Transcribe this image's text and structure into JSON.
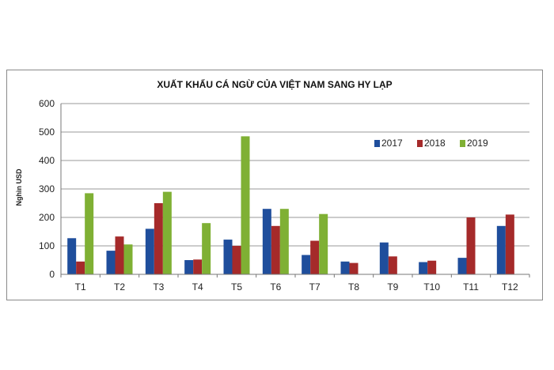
{
  "chart_data": {
    "type": "bar",
    "title": "XUẤT KHẨU CÁ NGỪ CỦA VIỆT NAM SANG HY LẠP",
    "ylabel": "Nghìn USD",
    "xlabel": "",
    "ylim": [
      0,
      600
    ],
    "yticks": [
      "0",
      "100",
      "200",
      "300",
      "400",
      "500",
      "600"
    ],
    "categories": [
      "T1",
      "T2",
      "T3",
      "T4",
      "T5",
      "T6",
      "T7",
      "T8",
      "T9",
      "T10",
      "T11",
      "T12"
    ],
    "series": [
      {
        "name": "2017",
        "color": "#1f4e9c",
        "values": [
          127,
          83,
          160,
          50,
          122,
          230,
          68,
          45,
          112,
          43,
          58,
          170
        ]
      },
      {
        "name": "2018",
        "color": "#a52a2a",
        "values": [
          45,
          133,
          250,
          52,
          100,
          170,
          118,
          40,
          63,
          48,
          200,
          210
        ]
      },
      {
        "name": "2019",
        "color": "#7fb034",
        "values": [
          285,
          105,
          290,
          180,
          485,
          230,
          212,
          0,
          0,
          0,
          0,
          0
        ]
      }
    ],
    "grid": true,
    "legend": "top-right"
  }
}
